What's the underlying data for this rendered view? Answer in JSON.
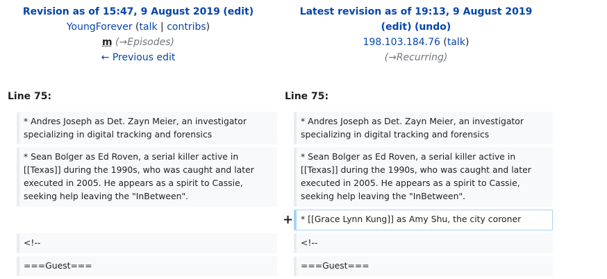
{
  "left_header": {
    "title_prefix": "Revision as of 15:47, 9 August 2019",
    "edit_link": "(edit)",
    "user": "YoungForever",
    "talk": "talk",
    "sep": " | ",
    "contribs": "contribs",
    "minor": "m",
    "comment": "(→Episodes)",
    "prev_edit": "← Previous edit"
  },
  "right_header": {
    "title": "Latest revision as of 19:13, 9 August 2019",
    "edit_link": "(edit)",
    "undo_link": "(undo)",
    "user": "198.103.184.76",
    "talk": "talk",
    "comment": "(→Recurring)"
  },
  "line_label_left": "Line 75:",
  "line_label_right": "Line 75:",
  "marker_added": "+",
  "rows": {
    "r1": "* Andres Joseph as Det. Zayn Meier, an investigator\nspecializing in digital tracking and forensics",
    "r2": "* Sean Bolger as Ed Roven, a serial killer active in\n[[Texas]] during the 1990s, who was caught and later\nexecuted in 2005. He appears as a spirit to Cassie,\nseeking help leaving the \"InBetween\".",
    "added": "* [[Grace Lynn Kung]] as Amy Shu, the city coroner",
    "r3": "<!--",
    "r4": "===Guest==="
  }
}
